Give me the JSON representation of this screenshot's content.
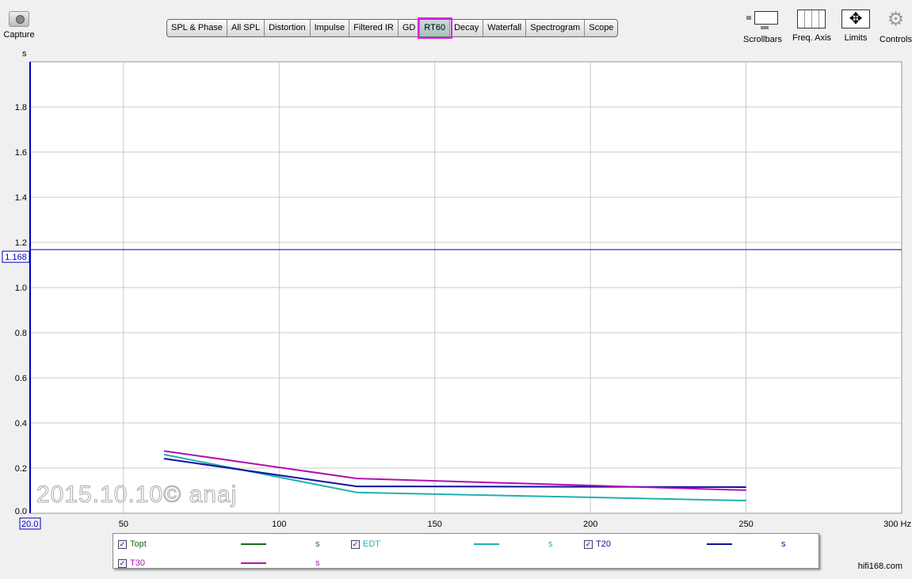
{
  "toolbar": {
    "capture": "Capture",
    "tabs": [
      "SPL & Phase",
      "All SPL",
      "Distortion",
      "Impulse",
      "Filtered IR",
      "GD",
      "RT60",
      "Decay",
      "Waterfall",
      "Spectrogram",
      "Scope"
    ],
    "active_tab": "RT60",
    "right": [
      "Scrollbars",
      "Freq. Axis",
      "Limits",
      "Controls"
    ]
  },
  "chart_data": {
    "type": "line",
    "ylabel": "s",
    "xunit": "Hz",
    "xlim": [
      20,
      300
    ],
    "ylim": [
      0,
      2.0
    ],
    "xticks": [
      "20.0",
      "50",
      "100",
      "150",
      "200",
      "250",
      "300 Hz"
    ],
    "xtick_values": [
      20,
      50,
      100,
      150,
      200,
      250,
      300
    ],
    "yticks": [
      "0.0",
      "0.2",
      "0.4",
      "0.6",
      "0.8",
      "1.0",
      "1.2",
      "1.4",
      "1.6",
      "1.8"
    ],
    "ytick_values": [
      0,
      0.2,
      0.4,
      0.6,
      0.8,
      1.0,
      1.2,
      1.4,
      1.6,
      1.8
    ],
    "grid": true,
    "cursor_value": "1.168",
    "series": [
      {
        "name": "Topt",
        "color": "#1a6b1a",
        "unit": "s",
        "x": [],
        "y": []
      },
      {
        "name": "EDT",
        "color": "#20b0b0",
        "unit": "s",
        "x": [
          63,
          125,
          250
        ],
        "y": [
          0.26,
          0.092,
          0.056
        ]
      },
      {
        "name": "T20",
        "color": "#1010a0",
        "unit": "s",
        "x": [
          63,
          125,
          250
        ],
        "y": [
          0.242,
          0.119,
          0.116
        ]
      },
      {
        "name": "T30",
        "color": "#b010b0",
        "unit": "s",
        "x": [
          63,
          125,
          250
        ],
        "y": [
          0.276,
          0.154,
          0.102
        ]
      }
    ]
  },
  "watermark": "2015.10.10© anaj",
  "site": "hifi168.com"
}
